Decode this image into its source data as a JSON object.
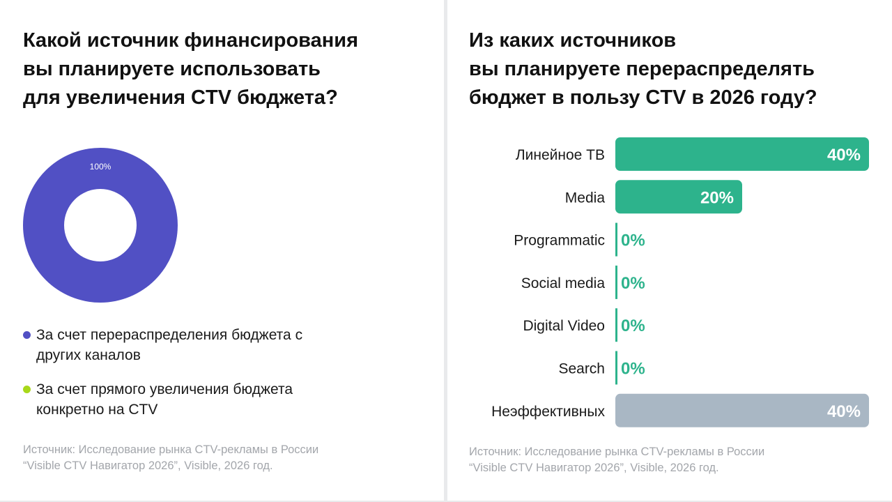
{
  "left": {
    "title_lines": [
      "Какой источник финансирования",
      "вы планируете использовать",
      "для увеличения CTV бюджета?"
    ],
    "chart_data": {
      "type": "pie",
      "donut": true,
      "labels": [
        "За счет перераспределения бюджета с других каналов",
        "За счет прямого увеличения бюджета конкретно на CTV"
      ],
      "values": [
        100,
        0
      ],
      "data_labels": [
        "100%",
        ""
      ],
      "colors": [
        "#5150c4",
        "#a8d81a"
      ]
    },
    "legend": [
      {
        "lines": [
          "За счет перераспределения бюджета с",
          "других каналов"
        ],
        "color": "#5150c4"
      },
      {
        "lines": [
          "За счет прямого увеличения бюджета",
          "конкретно на CTV"
        ],
        "color": "#a8d81a"
      }
    ],
    "source_lines": [
      "Источник: Исследование рынка CTV-рекламы в России",
      "“Visible CTV Навигатор 2026”, Visible, 2026 год."
    ]
  },
  "right": {
    "title_lines": [
      "Из каких источников",
      "вы планируете перераспределять",
      "бюджет в пользу CTV в 2026 году?"
    ],
    "chart_data": {
      "type": "bar",
      "orientation": "horizontal",
      "categories": [
        "Линейное ТВ",
        "Media",
        "Programmatic",
        "Social media",
        "Digital Video",
        "Search",
        "Неэффективных"
      ],
      "values": [
        40,
        20,
        0,
        0,
        0,
        0,
        40
      ],
      "data_labels": [
        "40%",
        "20%",
        "0%",
        "0%",
        "0%",
        "0%",
        "40%"
      ],
      "colors": [
        "#2db38c",
        "#2db38c",
        "#2db38c",
        "#2db38c",
        "#2db38c",
        "#2db38c",
        "#a9b7c4"
      ],
      "xlim": [
        0,
        40
      ]
    },
    "source_lines": [
      "Источник: Исследование рынка CTV-рекламы в России",
      "“Visible CTV Навигатор 2026”, Visible, 2026 год."
    ]
  }
}
